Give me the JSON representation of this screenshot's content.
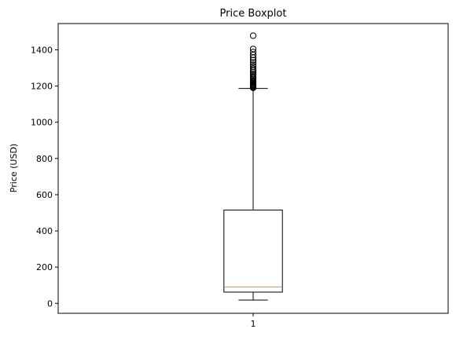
{
  "chart_data": {
    "type": "boxplot",
    "title": "Price Boxplot",
    "xlabel": "",
    "ylabel": "Price (USD)",
    "categories": [
      "1"
    ],
    "ylim": [
      -55,
      1545
    ],
    "yticks": [
      0,
      200,
      400,
      600,
      800,
      1000,
      1200,
      1400
    ],
    "grid": false,
    "boxes": [
      {
        "category": "1",
        "whisker_low": 18,
        "q1": 62,
        "median": 91,
        "q3": 515,
        "whisker_high": 1187,
        "outliers": [
          1190,
          1193,
          1196,
          1199,
          1203,
          1207,
          1211,
          1216,
          1221,
          1226,
          1232,
          1238,
          1245,
          1252,
          1260,
          1268,
          1277,
          1286,
          1296,
          1307,
          1318,
          1330,
          1343,
          1357,
          1372,
          1388,
          1405,
          1478
        ]
      }
    ],
    "colors": {
      "box": "#000000",
      "median": "#ff7f0e",
      "whisker": "#000000",
      "outlier": "#000000"
    }
  }
}
